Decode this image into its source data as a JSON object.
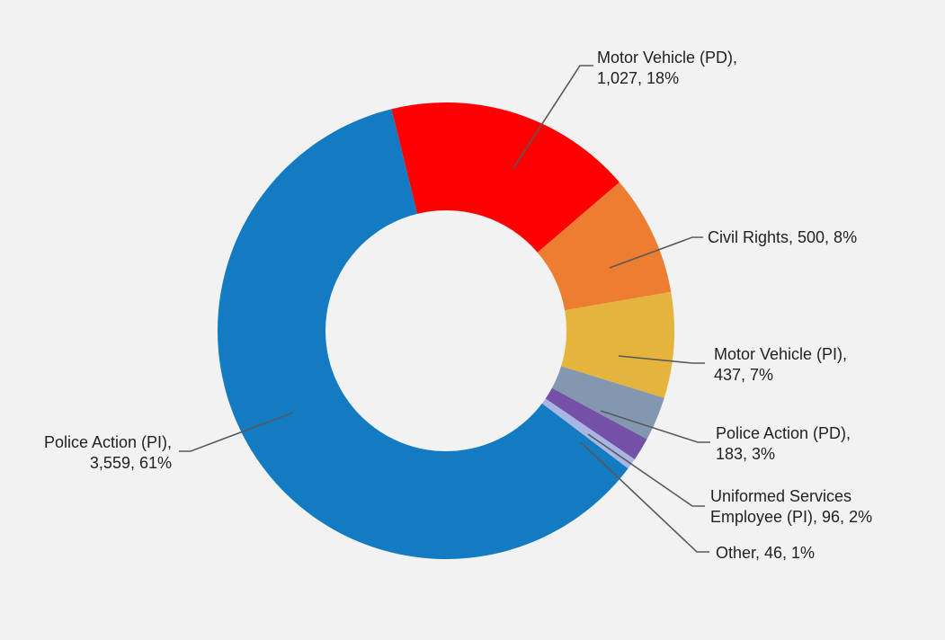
{
  "chart_data": {
    "type": "pie",
    "donut": true,
    "title": "",
    "slices": [
      {
        "name": "Motor Vehicle (PD)",
        "value": 1027,
        "percent": "18%",
        "label_lines": [
          "Motor Vehicle (PD),",
          "1,027, 18%"
        ],
        "color": "#ff0000"
      },
      {
        "name": "Civil Rights",
        "value": 500,
        "percent": "8%",
        "label_lines": [
          "Civil Rights, 500, 8%"
        ],
        "color": "#ed7d31"
      },
      {
        "name": "Motor Vehicle (PI)",
        "value": 437,
        "percent": "7%",
        "label_lines": [
          "Motor Vehicle (PI),",
          "437, 7%"
        ],
        "color": "#e4b43c"
      },
      {
        "name": "Police Action (PD)",
        "value": 183,
        "percent": "3%",
        "label_lines": [
          "Police Action (PD),",
          "183, 3%"
        ],
        "color": "#8497b0"
      },
      {
        "name": "Uniformed Services Employee (PI)",
        "value": 96,
        "percent": "2%",
        "label_lines": [
          "Uniformed Services",
          "Employee (PI), 96, 2%"
        ],
        "color": "#7451a6"
      },
      {
        "name": "Other",
        "value": 46,
        "percent": "1%",
        "label_lines": [
          "Other, 46, 1%"
        ],
        "color": "#a9b5e3"
      },
      {
        "name": "Police Action (PI)",
        "value": 3559,
        "percent": "61%",
        "label_lines": [
          "Police Action (PI),",
          "3,559, 61%"
        ],
        "color": "#127bc2"
      }
    ],
    "legend": "none"
  }
}
